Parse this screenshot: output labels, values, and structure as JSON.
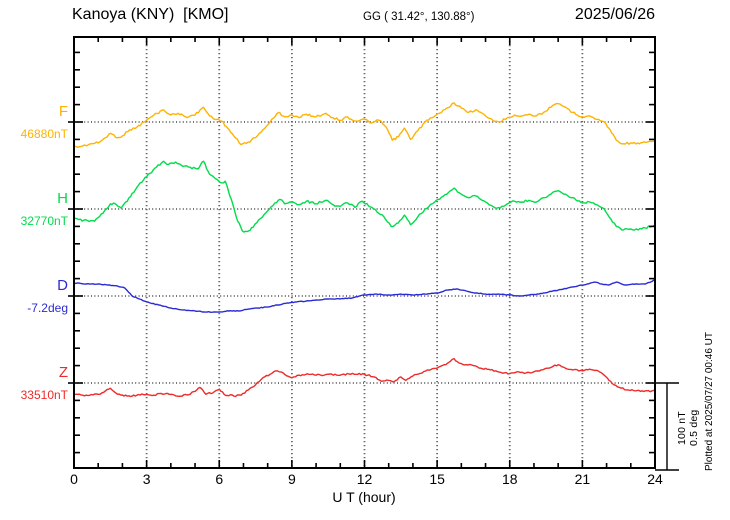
{
  "header": {
    "station_title": "Kanoya (KNY)  [KMO]",
    "coords": "GG ( 31.42°, 130.88°)",
    "date": "2025/06/26"
  },
  "x_axis": {
    "label": "U T (hour)",
    "ticks": [
      0,
      3,
      6,
      9,
      12,
      15,
      18,
      21,
      24
    ],
    "range": [
      0,
      24
    ],
    "minor_step_hours": 1,
    "grid_dotted_every_hours": 3
  },
  "scalebar": {
    "labels": [
      "100 nT",
      "0.5 deg"
    ]
  },
  "footer_note": "Plotted at 2025/07/27 00:46 UT",
  "components": [
    {
      "id": "F",
      "label": "F",
      "baseline_label": "46880nT",
      "baseline_value": 46880,
      "unit": "nT",
      "color": "#FFB300"
    },
    {
      "id": "H",
      "label": "H",
      "baseline_label": "32770nT",
      "baseline_value": 32770,
      "unit": "nT",
      "color": "#00DC4B"
    },
    {
      "id": "D",
      "label": "D",
      "baseline_label": "-7.2deg",
      "baseline_value": -7.2,
      "unit": "deg",
      "color": "#2B2BD5"
    },
    {
      "id": "Z",
      "label": "Z",
      "baseline_label": "33510nT",
      "baseline_value": 33510,
      "unit": "nT",
      "color": "#EE2A2A"
    }
  ],
  "chart_data": {
    "type": "line",
    "title": "Kanoya (KNY) [KMO] magnetogram, 2025/06/26",
    "xlabel": "U T (hour)",
    "x_range_hours": [
      0,
      24
    ],
    "grid": "dotted baselines and 3-hour verticals",
    "scale_bar": {
      "nT": 100,
      "deg": 0.5
    },
    "nT_per_tick": 20,
    "deg_per_tick": 0.1,
    "series": [
      {
        "name": "F",
        "unit": "nT",
        "baseline": 46880,
        "delta_points": [
          [
            0,
            -29
          ],
          [
            0.3,
            -28
          ],
          [
            0.7,
            -25
          ],
          [
            1.0,
            -24
          ],
          [
            1.3,
            -18
          ],
          [
            1.5,
            -13
          ],
          [
            1.8,
            -18
          ],
          [
            2.0,
            -16
          ],
          [
            2.3,
            -9
          ],
          [
            2.6,
            -6
          ],
          [
            3.0,
            2
          ],
          [
            3.3,
            8
          ],
          [
            3.7,
            14
          ],
          [
            4.0,
            8
          ],
          [
            4.3,
            10
          ],
          [
            4.6,
            6
          ],
          [
            5.0,
            8
          ],
          [
            5.35,
            17
          ],
          [
            5.6,
            7
          ],
          [
            5.9,
            3
          ],
          [
            6.1,
            1
          ],
          [
            6.35,
            -7
          ],
          [
            6.6,
            -16
          ],
          [
            6.9,
            -26
          ],
          [
            7.2,
            -23
          ],
          [
            7.5,
            -18
          ],
          [
            7.8,
            -9
          ],
          [
            8.1,
            0
          ],
          [
            8.45,
            11
          ],
          [
            8.7,
            6
          ],
          [
            9.0,
            8
          ],
          [
            9.3,
            5
          ],
          [
            9.6,
            9
          ],
          [
            10.0,
            6
          ],
          [
            10.4,
            10
          ],
          [
            10.7,
            5
          ],
          [
            11.0,
            2
          ],
          [
            11.3,
            6
          ],
          [
            11.6,
            1
          ],
          [
            12.0,
            3
          ],
          [
            12.3,
            -1
          ],
          [
            12.6,
            2
          ],
          [
            12.9,
            -6
          ],
          [
            13.15,
            -21
          ],
          [
            13.4,
            -17
          ],
          [
            13.65,
            -7
          ],
          [
            13.9,
            -20
          ],
          [
            14.2,
            -10
          ],
          [
            14.5,
            0
          ],
          [
            14.8,
            5
          ],
          [
            15.1,
            10
          ],
          [
            15.4,
            16
          ],
          [
            15.7,
            22
          ],
          [
            16.0,
            16
          ],
          [
            16.3,
            11
          ],
          [
            16.6,
            14
          ],
          [
            17.0,
            7
          ],
          [
            17.3,
            2
          ],
          [
            17.6,
            0
          ],
          [
            17.9,
            5
          ],
          [
            18.2,
            8
          ],
          [
            18.5,
            7
          ],
          [
            18.8,
            9
          ],
          [
            19.1,
            7
          ],
          [
            19.4,
            11
          ],
          [
            19.7,
            17
          ],
          [
            20.0,
            21
          ],
          [
            20.3,
            17
          ],
          [
            20.6,
            11
          ],
          [
            21.0,
            6
          ],
          [
            21.3,
            7
          ],
          [
            21.6,
            3
          ],
          [
            21.9,
            0
          ],
          [
            22.15,
            -9
          ],
          [
            22.4,
            -21
          ],
          [
            22.7,
            -25
          ],
          [
            23.0,
            -24
          ],
          [
            23.35,
            -25
          ],
          [
            23.7,
            -23
          ],
          [
            24.0,
            -22
          ]
        ]
      },
      {
        "name": "H",
        "unit": "nT",
        "baseline": 32770,
        "delta_points": [
          [
            0,
            -11
          ],
          [
            0.4,
            -13
          ],
          [
            0.85,
            -14
          ],
          [
            1.2,
            -5
          ],
          [
            1.5,
            6
          ],
          [
            1.75,
            5
          ],
          [
            1.95,
            1
          ],
          [
            2.2,
            9
          ],
          [
            2.6,
            25
          ],
          [
            3.0,
            37
          ],
          [
            3.4,
            48
          ],
          [
            3.7,
            55
          ],
          [
            3.9,
            51
          ],
          [
            4.2,
            54
          ],
          [
            4.5,
            49
          ],
          [
            4.8,
            48
          ],
          [
            5.1,
            46
          ],
          [
            5.35,
            55
          ],
          [
            5.6,
            40
          ],
          [
            5.9,
            34
          ],
          [
            6.1,
            30
          ],
          [
            6.25,
            32
          ],
          [
            6.5,
            11
          ],
          [
            6.7,
            -9
          ],
          [
            6.95,
            -25
          ],
          [
            7.15,
            -26
          ],
          [
            7.4,
            -21
          ],
          [
            7.7,
            -11
          ],
          [
            8.0,
            -2
          ],
          [
            8.3,
            7
          ],
          [
            8.5,
            11
          ],
          [
            8.7,
            6
          ],
          [
            9.0,
            8
          ],
          [
            9.3,
            5
          ],
          [
            9.6,
            9
          ],
          [
            10.0,
            6
          ],
          [
            10.4,
            10
          ],
          [
            10.7,
            5
          ],
          [
            11.0,
            3
          ],
          [
            11.3,
            7
          ],
          [
            11.6,
            2
          ],
          [
            11.9,
            9
          ],
          [
            12.3,
            2
          ],
          [
            12.8,
            -9
          ],
          [
            13.1,
            -20
          ],
          [
            13.4,
            -16
          ],
          [
            13.65,
            -7
          ],
          [
            13.9,
            -18
          ],
          [
            14.2,
            -9
          ],
          [
            14.5,
            0
          ],
          [
            14.8,
            6
          ],
          [
            15.1,
            11
          ],
          [
            15.4,
            17
          ],
          [
            15.7,
            24
          ],
          [
            16.0,
            17
          ],
          [
            16.3,
            13
          ],
          [
            16.6,
            15
          ],
          [
            17.0,
            8
          ],
          [
            17.3,
            3
          ],
          [
            17.6,
            1
          ],
          [
            17.9,
            6
          ],
          [
            18.2,
            9
          ],
          [
            18.5,
            8
          ],
          [
            18.8,
            10
          ],
          [
            19.1,
            8
          ],
          [
            19.4,
            13
          ],
          [
            19.7,
            17
          ],
          [
            20.0,
            21
          ],
          [
            20.3,
            17
          ],
          [
            20.6,
            13
          ],
          [
            21.0,
            7
          ],
          [
            21.3,
            8
          ],
          [
            21.6,
            5
          ],
          [
            21.9,
            0
          ],
          [
            22.1,
            -9
          ],
          [
            22.4,
            -20
          ],
          [
            22.7,
            -24
          ],
          [
            23.0,
            -23
          ],
          [
            23.3,
            -24
          ],
          [
            23.6,
            -22
          ],
          [
            24.0,
            -18
          ]
        ]
      },
      {
        "name": "D",
        "unit": "deg",
        "baseline": -7.2,
        "delta_points": [
          [
            0,
            0.075
          ],
          [
            0.5,
            0.069
          ],
          [
            1.0,
            0.069
          ],
          [
            1.4,
            0.063
          ],
          [
            1.8,
            0.057
          ],
          [
            2.1,
            0.046
          ],
          [
            2.4,
            0
          ],
          [
            2.7,
            -0.017
          ],
          [
            3.0,
            -0.034
          ],
          [
            3.5,
            -0.052
          ],
          [
            4.0,
            -0.069
          ],
          [
            4.5,
            -0.08
          ],
          [
            5.0,
            -0.086
          ],
          [
            5.5,
            -0.092
          ],
          [
            6.0,
            -0.092
          ],
          [
            6.4,
            -0.086
          ],
          [
            6.8,
            -0.086
          ],
          [
            7.2,
            -0.075
          ],
          [
            7.6,
            -0.069
          ],
          [
            8.0,
            -0.063
          ],
          [
            8.4,
            -0.052
          ],
          [
            8.8,
            -0.04
          ],
          [
            9.2,
            -0.034
          ],
          [
            9.6,
            -0.029
          ],
          [
            10.0,
            -0.023
          ],
          [
            10.5,
            -0.017
          ],
          [
            11.0,
            -0.017
          ],
          [
            11.5,
            -0.011
          ],
          [
            12.0,
            0.006
          ],
          [
            12.5,
            0.011
          ],
          [
            13.0,
            0.006
          ],
          [
            13.5,
            0.011
          ],
          [
            14.0,
            0.006
          ],
          [
            14.5,
            0.011
          ],
          [
            15.0,
            0.017
          ],
          [
            15.4,
            0.034
          ],
          [
            15.8,
            0.04
          ],
          [
            16.2,
            0.029
          ],
          [
            16.6,
            0.017
          ],
          [
            17.0,
            0.011
          ],
          [
            17.5,
            0.011
          ],
          [
            18.0,
            0.006
          ],
          [
            18.4,
            0
          ],
          [
            18.8,
            0.006
          ],
          [
            19.2,
            0.011
          ],
          [
            19.6,
            0.023
          ],
          [
            20.0,
            0.034
          ],
          [
            20.4,
            0.046
          ],
          [
            20.8,
            0.057
          ],
          [
            21.2,
            0.069
          ],
          [
            21.5,
            0.08
          ],
          [
            21.8,
            0.069
          ],
          [
            22.1,
            0.063
          ],
          [
            22.4,
            0.08
          ],
          [
            22.8,
            0.063
          ],
          [
            23.2,
            0.069
          ],
          [
            23.6,
            0.069
          ],
          [
            24.0,
            0.092
          ]
        ]
      },
      {
        "name": "Z",
        "unit": "nT",
        "baseline": 33510,
        "delta_points": [
          [
            0,
            -13
          ],
          [
            0.5,
            -14
          ],
          [
            1.0,
            -13
          ],
          [
            1.3,
            -9
          ],
          [
            1.5,
            -6
          ],
          [
            1.8,
            -13
          ],
          [
            2.2,
            -15
          ],
          [
            2.6,
            -14
          ],
          [
            3.0,
            -13
          ],
          [
            3.3,
            -14
          ],
          [
            3.6,
            -12
          ],
          [
            4.0,
            -13
          ],
          [
            4.4,
            -15
          ],
          [
            4.8,
            -13
          ],
          [
            5.2,
            -5
          ],
          [
            5.45,
            -13
          ],
          [
            5.8,
            -10
          ],
          [
            6.0,
            -7
          ],
          [
            6.2,
            -13
          ],
          [
            6.6,
            -15
          ],
          [
            6.9,
            -14
          ],
          [
            7.2,
            -8
          ],
          [
            7.5,
            -2
          ],
          [
            7.8,
            6
          ],
          [
            8.1,
            10
          ],
          [
            8.4,
            14
          ],
          [
            8.7,
            10
          ],
          [
            9.0,
            6
          ],
          [
            9.3,
            9
          ],
          [
            9.7,
            10
          ],
          [
            10.0,
            9
          ],
          [
            10.5,
            10
          ],
          [
            11.0,
            9
          ],
          [
            11.5,
            11
          ],
          [
            12.0,
            10
          ],
          [
            12.4,
            7
          ],
          [
            12.7,
            2
          ],
          [
            13.0,
            3
          ],
          [
            13.2,
            1
          ],
          [
            13.5,
            7
          ],
          [
            13.7,
            3
          ],
          [
            14.0,
            8
          ],
          [
            14.3,
            11
          ],
          [
            14.6,
            15
          ],
          [
            15.0,
            17
          ],
          [
            15.3,
            21
          ],
          [
            15.55,
            25
          ],
          [
            15.7,
            28
          ],
          [
            15.9,
            23
          ],
          [
            16.2,
            21
          ],
          [
            16.5,
            20
          ],
          [
            16.8,
            17
          ],
          [
            17.2,
            15
          ],
          [
            17.5,
            13
          ],
          [
            18.0,
            11
          ],
          [
            18.3,
            13
          ],
          [
            18.6,
            11
          ],
          [
            19.0,
            13
          ],
          [
            19.3,
            15
          ],
          [
            19.6,
            17
          ],
          [
            20.0,
            21
          ],
          [
            20.3,
            17
          ],
          [
            20.6,
            15
          ],
          [
            21.0,
            14
          ],
          [
            21.3,
            16
          ],
          [
            21.7,
            13
          ],
          [
            21.9,
            9
          ],
          [
            22.1,
            3
          ],
          [
            22.3,
            -2
          ],
          [
            22.6,
            -6
          ],
          [
            22.9,
            -8
          ],
          [
            23.2,
            -9
          ],
          [
            23.6,
            -9
          ],
          [
            24.0,
            -9
          ]
        ]
      }
    ]
  }
}
